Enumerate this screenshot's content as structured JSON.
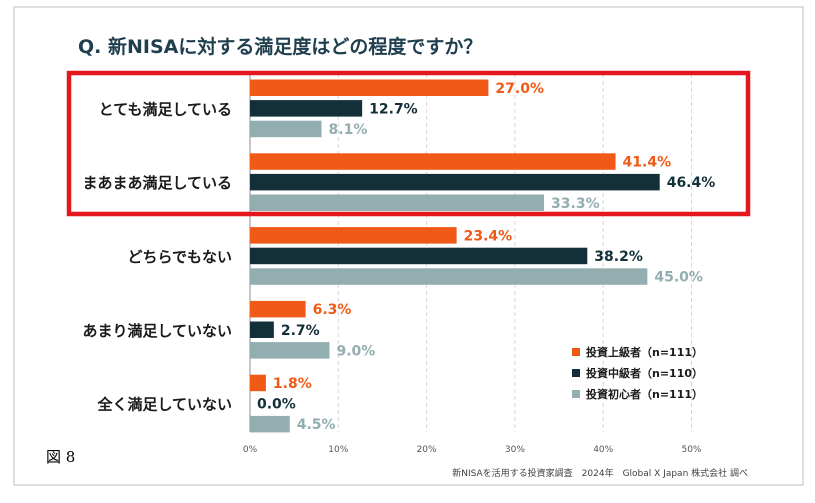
{
  "figure_label": "図 8",
  "source_note": "新NISAを活用する投資家調査　2024年　Global X Japan 株式会社 調べ",
  "colors": {
    "advanced": "#F05A16",
    "intermediate": "#13303A",
    "beginner": "#93AEB0",
    "grid": "#D5D5D5",
    "axis": "#8C8C8C",
    "highlight": "#E3171D",
    "title": "#1F3E4E"
  },
  "chart_data": {
    "type": "bar",
    "orientation": "horizontal",
    "title": "Q. 新NISAに対する満足度はどの程度ですか？",
    "categories": [
      "とても満足している",
      "まあまあ満足している",
      "どちらでもない",
      "あまり満足していない",
      "全く満足していない"
    ],
    "series": [
      {
        "name": "投資上級者（n=111）",
        "color_key": "advanced",
        "values": [
          27.0,
          41.4,
          23.4,
          6.3,
          1.8
        ],
        "labels": [
          "27.0%",
          "41.4%",
          "23.4%",
          "6.3%",
          "1.8%"
        ]
      },
      {
        "name": "投資中級者（n=110）",
        "color_key": "intermediate",
        "values": [
          12.7,
          46.4,
          38.2,
          2.7,
          0.0
        ],
        "labels": [
          "12.7%",
          "46.4%",
          "38.2%",
          "2.7%",
          "0.0%"
        ]
      },
      {
        "name": "投資初心者（n=111）",
        "color_key": "beginner",
        "values": [
          8.1,
          33.3,
          45.0,
          9.0,
          4.5
        ],
        "labels": [
          "8.1%",
          "33.3%",
          "45.0%",
          "9.0%",
          "4.5%"
        ]
      }
    ],
    "xlim": [
      0,
      50
    ],
    "xticks": [
      "0%",
      "10%",
      "20%",
      "30%",
      "40%",
      "50%"
    ],
    "xlabel": "",
    "ylabel": "",
    "grid": true,
    "legend_position": "bottom-right",
    "highlighted_categories": [
      "とても満足している",
      "まあまあ満足している"
    ]
  }
}
